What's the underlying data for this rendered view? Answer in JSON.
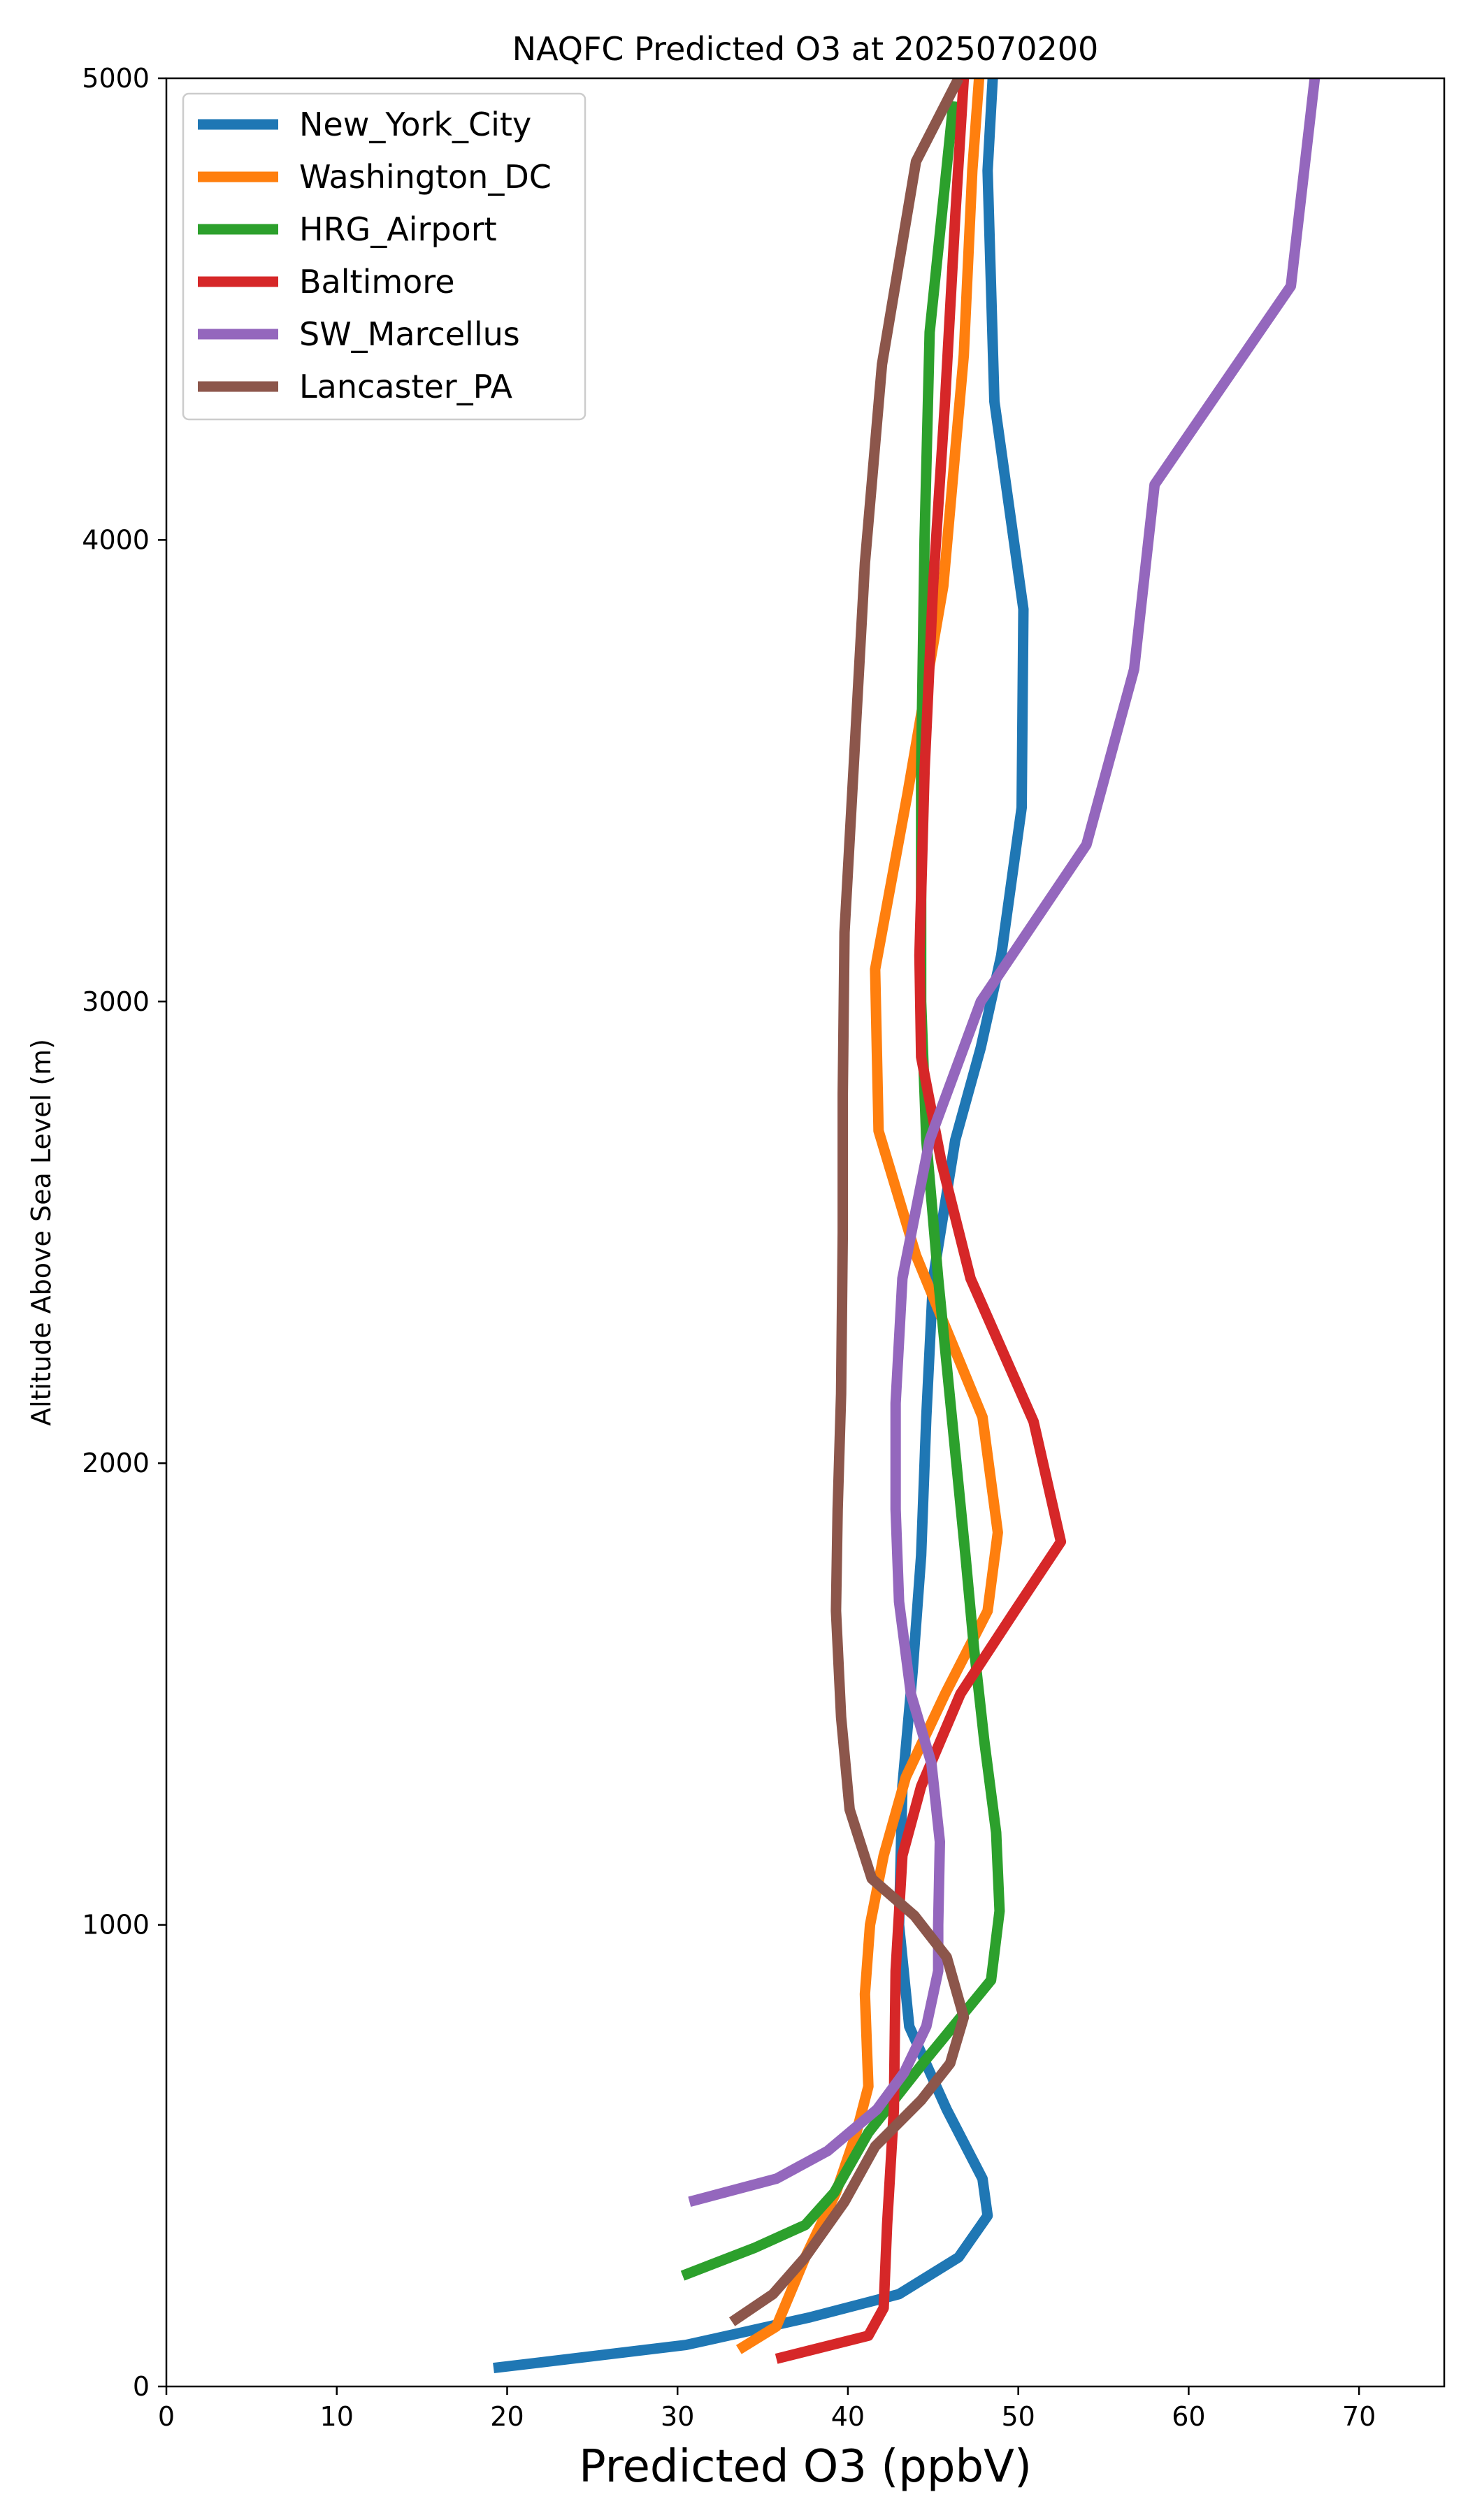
{
  "chart_data": {
    "type": "line",
    "title": "NAQFC Predicted O3 at 2025070200",
    "xlabel": "Predicted O3 (ppbV)",
    "ylabel": "Altitude Above Sea Level (m)",
    "xlim": [
      0,
      75
    ],
    "ylim": [
      0,
      5000
    ],
    "xticks": [
      0,
      10,
      20,
      30,
      40,
      50,
      60,
      70
    ],
    "yticks": [
      0,
      1000,
      2000,
      3000,
      4000,
      5000
    ],
    "grid": false,
    "legend_position": "top-left",
    "series": [
      {
        "name": "New_York_City",
        "color": "#1f77b4",
        "points": [
          [
            19.2,
            40
          ],
          [
            30.5,
            90
          ],
          [
            37.8,
            150
          ],
          [
            43.0,
            200
          ],
          [
            46.5,
            280
          ],
          [
            48.2,
            370
          ],
          [
            47.9,
            450
          ],
          [
            45.8,
            600
          ],
          [
            43.6,
            780
          ],
          [
            43.0,
            1000
          ],
          [
            43.2,
            1300
          ],
          [
            43.8,
            1550
          ],
          [
            44.3,
            1800
          ],
          [
            44.6,
            2100
          ],
          [
            45.0,
            2400
          ],
          [
            46.3,
            2700
          ],
          [
            47.8,
            2900
          ],
          [
            49.0,
            3100
          ],
          [
            50.2,
            3420
          ],
          [
            50.3,
            3850
          ],
          [
            48.6,
            4300
          ],
          [
            48.2,
            4800
          ],
          [
            48.5,
            5000
          ]
        ]
      },
      {
        "name": "Washington_DC",
        "color": "#ff7f0e",
        "points": [
          [
            33.6,
            80
          ],
          [
            35.8,
            130
          ],
          [
            37.5,
            280
          ],
          [
            39.3,
            420
          ],
          [
            40.5,
            550
          ],
          [
            41.2,
            650
          ],
          [
            41.0,
            850
          ],
          [
            41.3,
            1000
          ],
          [
            42.1,
            1150
          ],
          [
            43.4,
            1320
          ],
          [
            45.7,
            1500
          ],
          [
            48.2,
            1680
          ],
          [
            48.8,
            1850
          ],
          [
            47.9,
            2100
          ],
          [
            44.0,
            2450
          ],
          [
            41.8,
            2720
          ],
          [
            41.6,
            3070
          ],
          [
            43.5,
            3450
          ],
          [
            45.6,
            3900
          ],
          [
            46.8,
            4400
          ],
          [
            47.3,
            4800
          ],
          [
            47.7,
            5000
          ]
        ]
      },
      {
        "name": "HRG_Airport",
        "color": "#2ca02c",
        "points": [
          [
            30.3,
            240
          ],
          [
            34.5,
            300
          ],
          [
            37.5,
            350
          ],
          [
            39.2,
            420
          ],
          [
            41.2,
            550
          ],
          [
            44.4,
            700
          ],
          [
            48.4,
            880
          ],
          [
            48.9,
            1030
          ],
          [
            48.7,
            1200
          ],
          [
            48.0,
            1400
          ],
          [
            47.4,
            1600
          ],
          [
            46.9,
            1800
          ],
          [
            46.1,
            2100
          ],
          [
            45.3,
            2400
          ],
          [
            44.6,
            2700
          ],
          [
            44.3,
            3000
          ],
          [
            44.3,
            3500
          ],
          [
            44.5,
            4000
          ],
          [
            44.8,
            4450
          ],
          [
            45.5,
            4700
          ],
          [
            46.2,
            4950
          ]
        ]
      },
      {
        "name": "Baltimore",
        "color": "#d62728",
        "points": [
          [
            35.8,
            60
          ],
          [
            41.2,
            110
          ],
          [
            42.1,
            170
          ],
          [
            42.3,
            350
          ],
          [
            42.7,
            600
          ],
          [
            42.8,
            900
          ],
          [
            43.2,
            1150
          ],
          [
            44.3,
            1300
          ],
          [
            46.6,
            1500
          ],
          [
            49.8,
            1680
          ],
          [
            52.5,
            1830
          ],
          [
            50.9,
            2090
          ],
          [
            47.2,
            2400
          ],
          [
            45.5,
            2650
          ],
          [
            44.3,
            2880
          ],
          [
            44.2,
            3100
          ],
          [
            44.5,
            3500
          ],
          [
            45.0,
            3900
          ],
          [
            45.7,
            4300
          ],
          [
            46.3,
            4700
          ],
          [
            46.8,
            5000
          ]
        ]
      },
      {
        "name": "SW_Marcellus",
        "color": "#9467bd",
        "points": [
          [
            30.7,
            400
          ],
          [
            35.8,
            450
          ],
          [
            38.8,
            510
          ],
          [
            41.7,
            600
          ],
          [
            43.3,
            680
          ],
          [
            44.6,
            780
          ],
          [
            45.3,
            900
          ],
          [
            45.3,
            1000
          ],
          [
            45.4,
            1180
          ],
          [
            44.9,
            1350
          ],
          [
            43.7,
            1500
          ],
          [
            43.0,
            1700
          ],
          [
            42.8,
            1900
          ],
          [
            42.8,
            2130
          ],
          [
            43.2,
            2400
          ],
          [
            44.8,
            2700
          ],
          [
            47.8,
            3000
          ],
          [
            54.0,
            3340
          ],
          [
            56.8,
            3720
          ],
          [
            58.0,
            4120
          ],
          [
            66.0,
            4550
          ],
          [
            67.4,
            5000
          ]
        ]
      },
      {
        "name": "Lancaster_PA",
        "color": "#8c564b",
        "points": [
          [
            33.2,
            140
          ],
          [
            35.6,
            200
          ],
          [
            37.5,
            280
          ],
          [
            39.8,
            400
          ],
          [
            41.6,
            520
          ],
          [
            44.3,
            620
          ],
          [
            46.0,
            700
          ],
          [
            46.8,
            800
          ],
          [
            45.8,
            930
          ],
          [
            43.9,
            1020
          ],
          [
            41.4,
            1100
          ],
          [
            40.1,
            1250
          ],
          [
            39.6,
            1450
          ],
          [
            39.3,
            1680
          ],
          [
            39.4,
            1900
          ],
          [
            39.6,
            2150
          ],
          [
            39.7,
            2500
          ],
          [
            39.7,
            2800
          ],
          [
            39.8,
            3150
          ],
          [
            40.4,
            3550
          ],
          [
            41.0,
            3950
          ],
          [
            42.0,
            4380
          ],
          [
            44.0,
            4820
          ],
          [
            46.5,
            5000
          ]
        ]
      }
    ]
  }
}
